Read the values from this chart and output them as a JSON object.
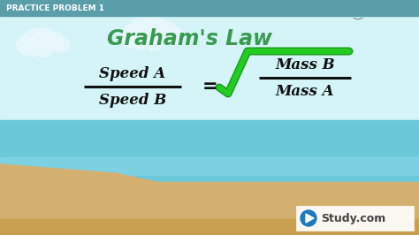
{
  "title": "Graham's Law",
  "header": "PRACTICE PROBLEM 1",
  "formula_left_num": "Speed A",
  "formula_left_den": "Speed B",
  "formula_right_num": "Mass B",
  "formula_right_den": "Mass A",
  "equals_sign": "=",
  "bg_sky_color": "#b8eef5",
  "bg_sky_light": "#d4f4f8",
  "bg_sea_color": "#6ac8d8",
  "bg_sea_light": "#8ed8e8",
  "bg_sand_color": "#d4b070",
  "bg_sand_dark": "#c8a050",
  "title_color": "#3a9a50",
  "header_color": "#ffffff",
  "header_bg": "#5a9eaa",
  "formula_color": "#111111",
  "sqrt_color": "#22cc22",
  "sqrt_outline": "#1a9918",
  "watermark_bg": "#ffffff",
  "watermark_text": "Study.com",
  "watermark_icon_color": "#1a7abf",
  "watermark_text_color": "#444444",
  "seagull_color": "#888888",
  "cloud_color": "#e8f8fc",
  "fig_width": 4.74,
  "fig_height": 2.66,
  "dpi": 100
}
